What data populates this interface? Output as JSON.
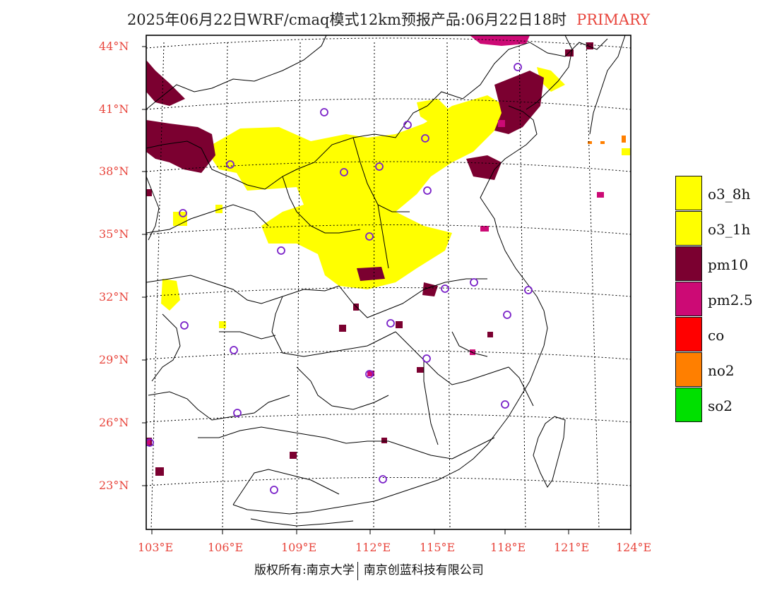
{
  "title": {
    "main": "2025年06月22日WRF/cmaq模式12km预报产品:06月22日18时",
    "tag": "PRIMARY"
  },
  "lat_labels": [
    "44°N",
    "41°N",
    "38°N",
    "35°N",
    "32°N",
    "29°N",
    "26°N",
    "23°N"
  ],
  "lon_labels": [
    "103°E",
    "106°E",
    "109°E",
    "112°E",
    "115°E",
    "118°E",
    "121°E",
    "124°E"
  ],
  "legend": [
    {
      "label": "o3_8h",
      "color": "#ffff00"
    },
    {
      "label": "o3_1h",
      "color": "#ffff00"
    },
    {
      "label": "pm10",
      "color": "#7b0030"
    },
    {
      "label": "pm2.5",
      "color": "#cc0a75"
    },
    {
      "label": "co",
      "color": "#ff0000"
    },
    {
      "label": "no2",
      "color": "#ff7f00"
    },
    {
      "label": "so2",
      "color": "#00e000"
    }
  ],
  "copyright": {
    "left": "版权所有:南京大学",
    "right": "南京创蓝科技有限公司"
  }
}
